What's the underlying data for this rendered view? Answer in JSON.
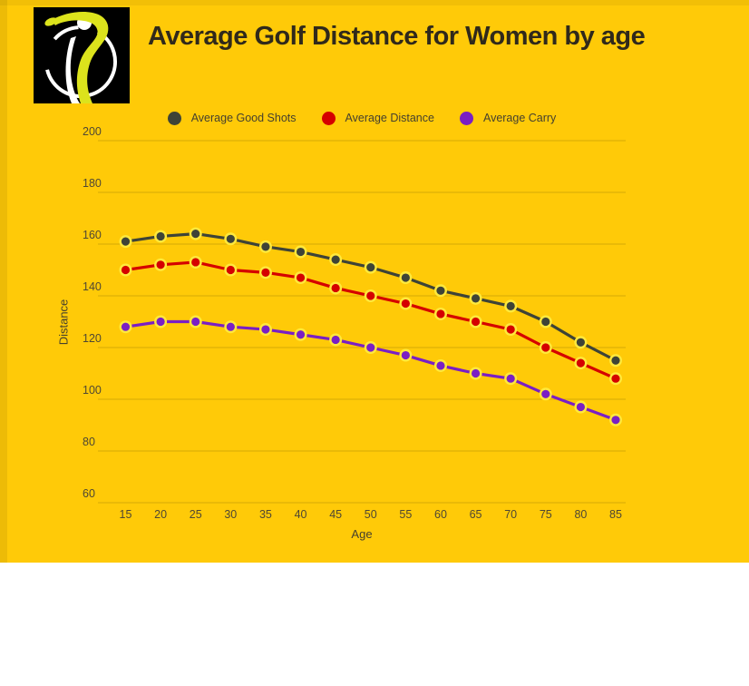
{
  "header": {
    "title": "Average Golf Distance for Women by age",
    "logo": "golfer-swing-logo"
  },
  "colors": {
    "background": "#ffca08",
    "title_text": "#30291b",
    "axis_text": "#4f4734",
    "legend_text": "#45402e",
    "gridline": "rgba(0,0,0,0.16)",
    "marker_halo": "#ffe93c",
    "logo_background": "#000000",
    "logo_swoosh_yellow": "#dce31c",
    "logo_swoosh_white": "#ffffff"
  },
  "chart_data": {
    "type": "line",
    "title": "Average Golf Distance for Women by age",
    "xlabel": "Age",
    "ylabel": "Distance",
    "x": [
      15,
      20,
      25,
      30,
      35,
      40,
      45,
      50,
      55,
      60,
      65,
      70,
      75,
      80,
      85
    ],
    "ylim": [
      60,
      200
    ],
    "yticks": [
      200,
      180,
      160,
      140,
      120,
      100,
      80,
      60
    ],
    "grid": true,
    "legend_position": "top",
    "series": [
      {
        "name": "Average Good Shots",
        "color": "#3e4337",
        "values": [
          161,
          163,
          164,
          162,
          159,
          157,
          154,
          151,
          147,
          142,
          139,
          136,
          130,
          122,
          115
        ]
      },
      {
        "name": "Average Distance",
        "color": "#d50000",
        "values": [
          150,
          152,
          153,
          150,
          149,
          147,
          143,
          140,
          137,
          133,
          130,
          127,
          120,
          114,
          108
        ]
      },
      {
        "name": "Average Carry",
        "color": "#7a1fc4",
        "values": [
          128,
          130,
          130,
          128,
          127,
          125,
          123,
          120,
          117,
          113,
          110,
          108,
          102,
          97,
          92
        ]
      }
    ]
  }
}
